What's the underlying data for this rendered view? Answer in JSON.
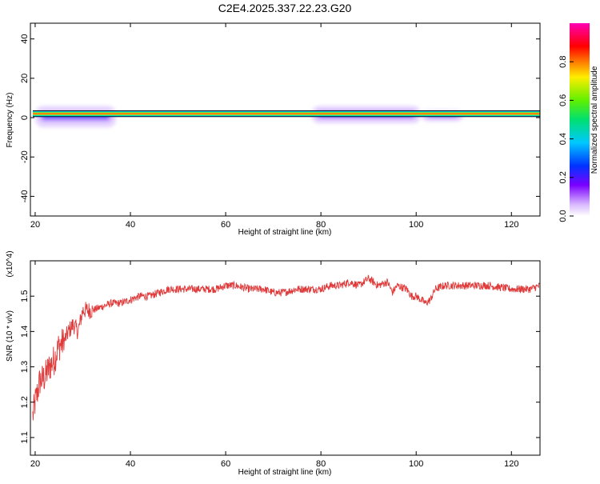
{
  "title": "C2E4.2025.337.22.23.G20",
  "colors": {
    "line": "#e03a3a",
    "frame": "#000000"
  },
  "chart_data": [
    {
      "type": "heatmap",
      "xlabel": "Height of straight line (km)",
      "ylabel": "Frequency (Hz)",
      "xlim": [
        19,
        126
      ],
      "ylim": [
        -50,
        48
      ],
      "xticks": [
        "20",
        "40",
        "60",
        "80",
        "100",
        "120"
      ],
      "xtick_values": [
        20,
        40,
        60,
        80,
        100,
        120
      ],
      "yticks": [
        "40",
        "20",
        "0",
        "-20",
        "-40"
      ],
      "ytick_values": [
        40,
        20,
        0,
        -20,
        -40
      ],
      "colorbar": {
        "label": "Normalized spectral amplitude",
        "ticks": [
          "0.0",
          "0.2",
          "0.4",
          "0.6",
          "0.8"
        ],
        "tick_values": [
          0.0,
          0.2,
          0.4,
          0.6,
          0.8
        ],
        "range": [
          0,
          1
        ],
        "colormap": "rainbow (white, violet, blue, cyan, green, yellow, red, magenta)"
      },
      "bands": [
        {
          "x_start": 19.5,
          "x_end": 126,
          "freq_low": 0.5,
          "freq_high": 3.5,
          "amplitude": 1.0
        },
        {
          "x_start": 20,
          "x_end": 37,
          "freq_low": -5,
          "freq_high": 6,
          "amplitude": 0.35
        },
        {
          "x_start": 78,
          "x_end": 101,
          "freq_low": -3,
          "freq_high": 6,
          "amplitude": 0.45
        },
        {
          "x_start": 101,
          "x_end": 110,
          "freq_low": -2,
          "freq_high": 4,
          "amplitude": 0.2
        }
      ]
    },
    {
      "type": "line",
      "xlabel": "Height of straight line (km)",
      "ylabel": "SNR (10 * v/v)",
      "y_multiplier": "(x10^4)",
      "xlim": [
        19,
        126
      ],
      "ylim": [
        1.05,
        1.6
      ],
      "xticks": [
        "20",
        "40",
        "60",
        "80",
        "100",
        "120"
      ],
      "xtick_values": [
        20,
        40,
        60,
        80,
        100,
        120
      ],
      "yticks": [
        "1.5",
        "1.4",
        "1.3",
        "1.2",
        "1.1"
      ],
      "ytick_values": [
        1.5,
        1.4,
        1.3,
        1.2,
        1.1
      ],
      "series": [
        {
          "x": [
            19.5,
            20,
            21,
            22,
            23,
            24,
            25,
            26,
            27,
            28,
            29,
            30,
            32,
            34,
            36,
            38,
            40,
            42,
            44,
            46,
            48,
            50,
            52,
            55,
            58,
            60,
            62,
            65,
            68,
            70,
            72,
            75,
            78,
            80,
            82,
            84,
            86,
            88,
            90,
            91,
            92,
            94,
            95,
            96,
            98,
            99,
            100,
            101,
            102,
            103,
            104,
            106,
            110,
            115,
            120,
            124,
            126
          ],
          "y": [
            1.16,
            1.2,
            1.26,
            1.27,
            1.3,
            1.32,
            1.36,
            1.37,
            1.4,
            1.42,
            1.4,
            1.46,
            1.46,
            1.47,
            1.48,
            1.48,
            1.49,
            1.5,
            1.5,
            1.51,
            1.52,
            1.52,
            1.52,
            1.52,
            1.52,
            1.53,
            1.53,
            1.52,
            1.52,
            1.51,
            1.51,
            1.52,
            1.52,
            1.52,
            1.53,
            1.53,
            1.54,
            1.53,
            1.55,
            1.54,
            1.53,
            1.54,
            1.51,
            1.53,
            1.52,
            1.5,
            1.5,
            1.49,
            1.48,
            1.49,
            1.52,
            1.53,
            1.53,
            1.53,
            1.52,
            1.52,
            1.53
          ]
        }
      ]
    }
  ]
}
